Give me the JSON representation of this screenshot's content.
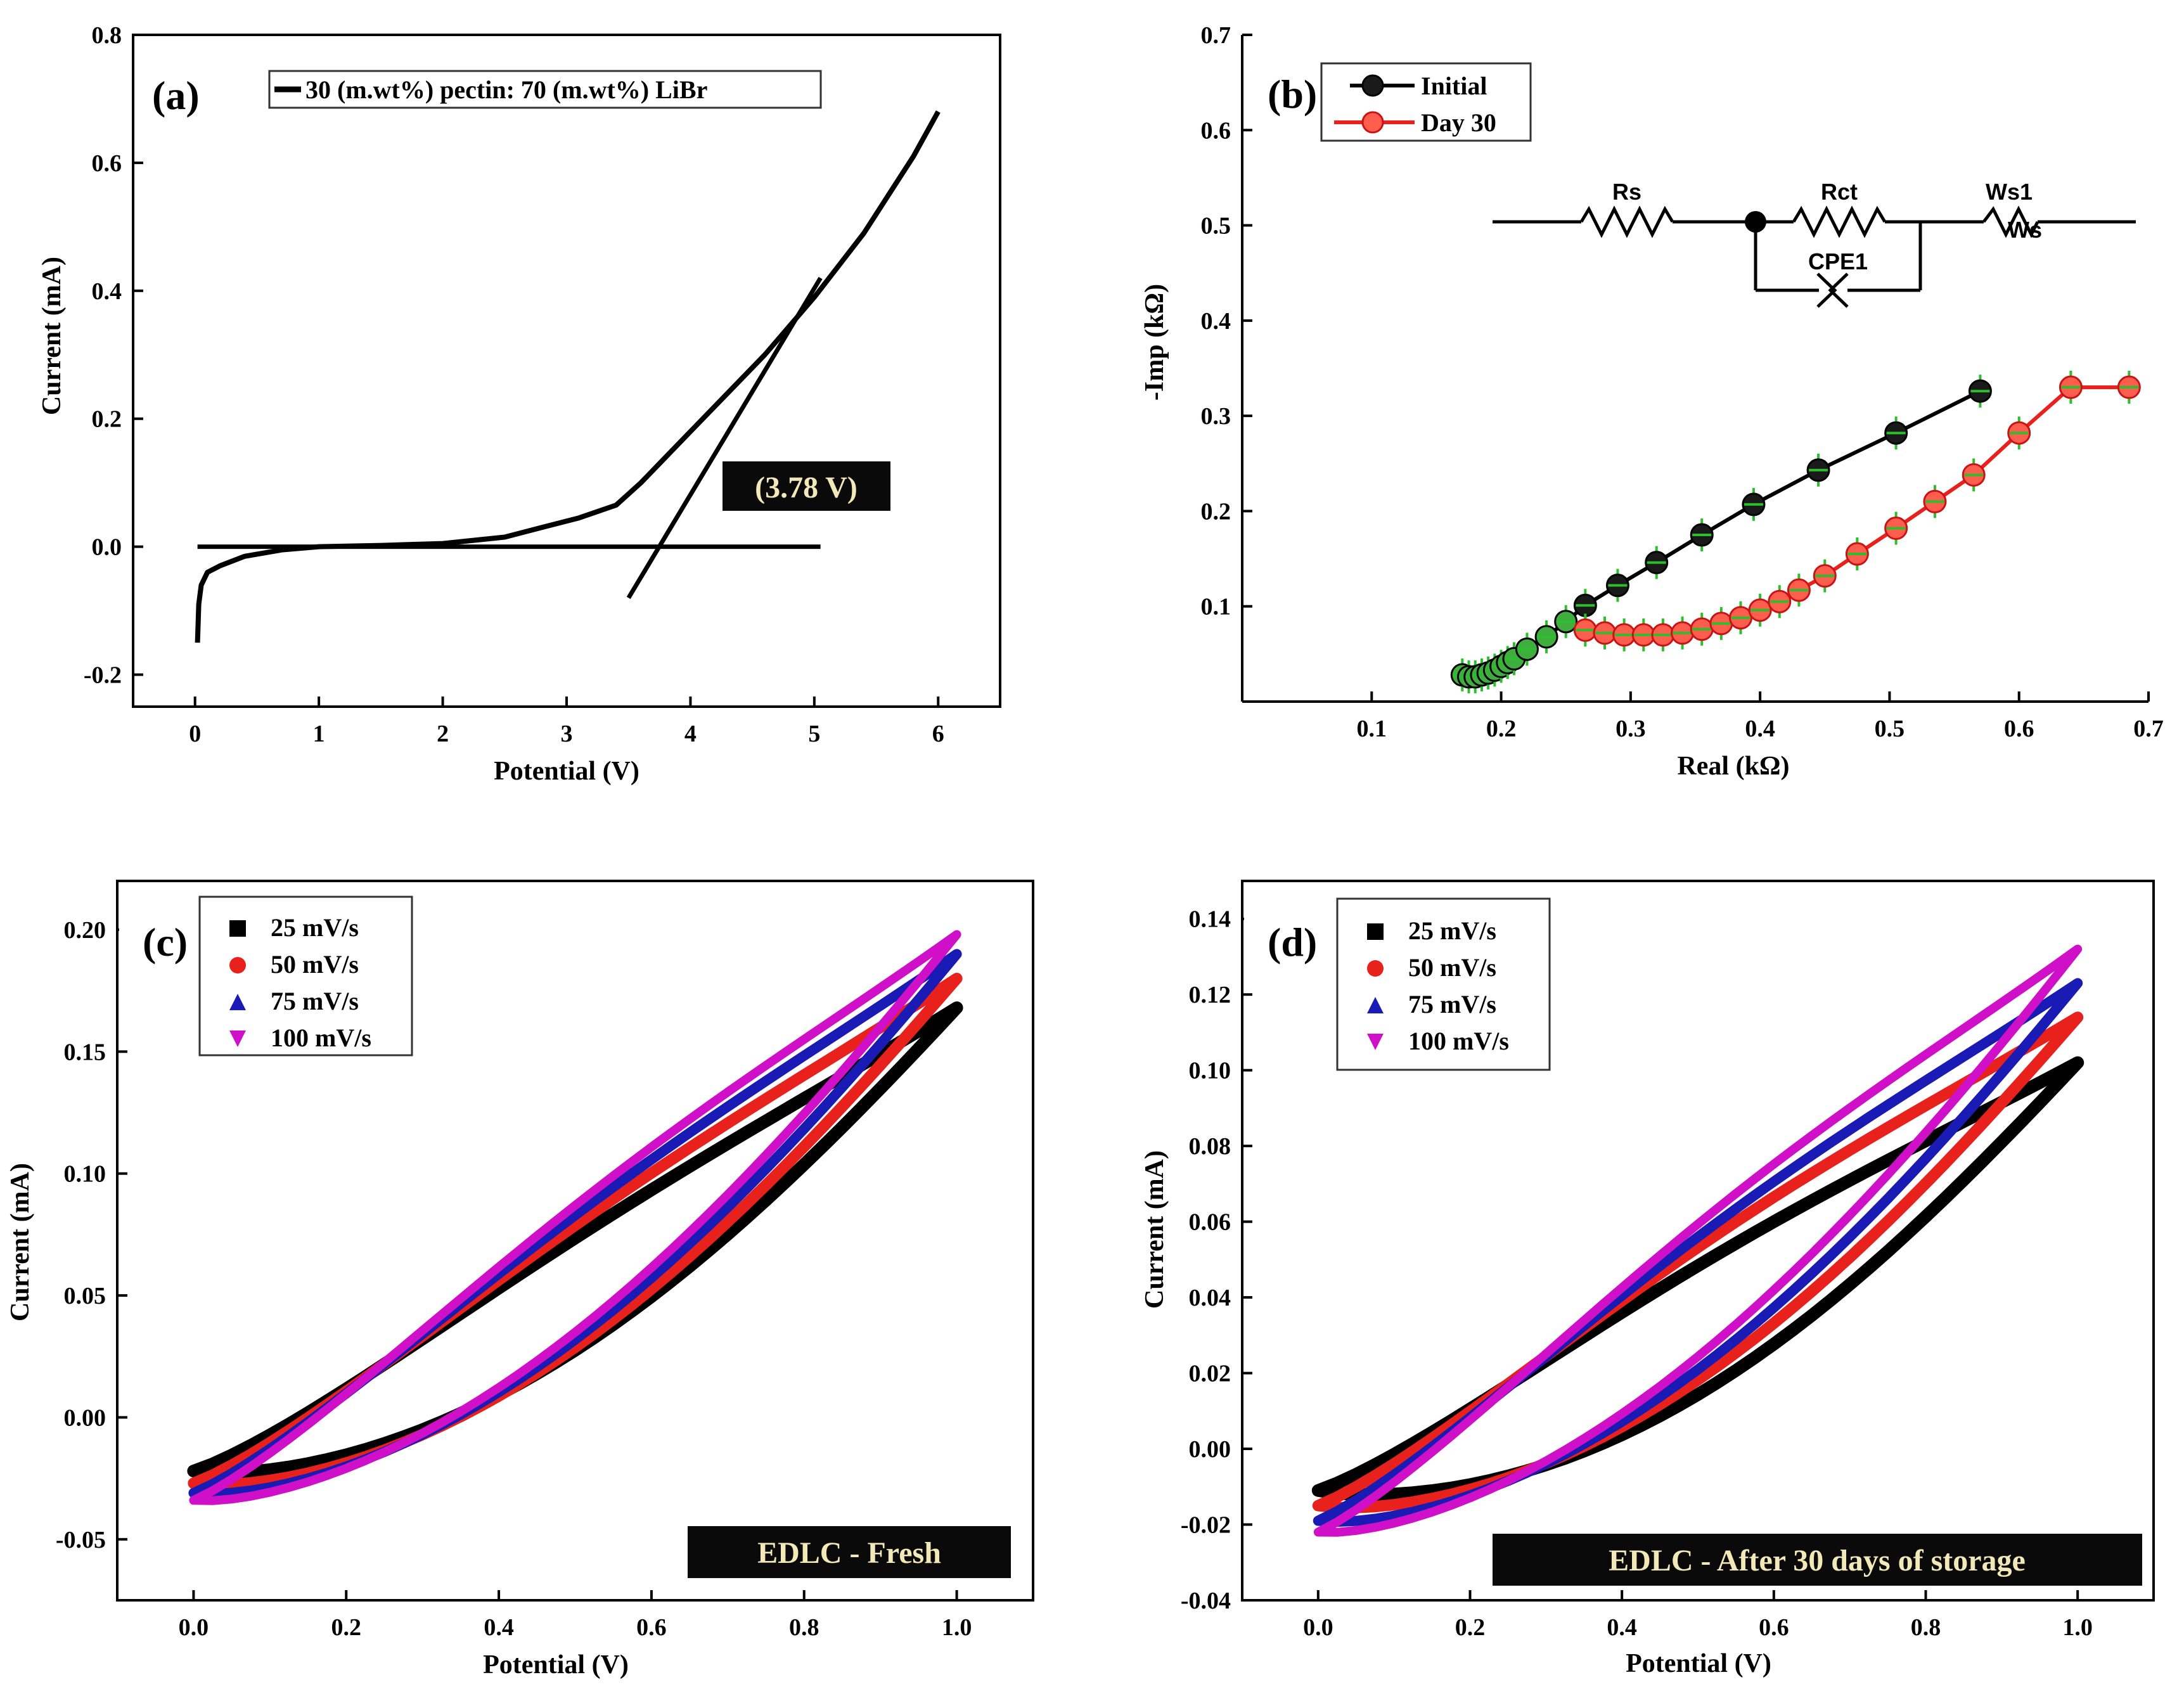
{
  "chart_data": [
    {
      "id": "a",
      "type": "line",
      "panel_label": "(a)",
      "xlabel": "Potential (V)",
      "ylabel": "Current (mA)",
      "xlim": [
        -0.5,
        6.5
      ],
      "ylim": [
        -0.25,
        0.8
      ],
      "xticks": [
        0,
        1,
        2,
        3,
        4,
        5,
        6
      ],
      "yticks": [
        -0.2,
        0.0,
        0.2,
        0.4,
        0.6,
        0.8
      ],
      "xtick_labels": [
        "0",
        "1",
        "2",
        "3",
        "4",
        "5",
        "6"
      ],
      "ytick_labels": [
        "-0.2",
        "0.0",
        "0.2",
        "0.4",
        "0.6",
        "0.8"
      ],
      "legend": [
        "30 (m.wt%) pectin: 70 (m.wt%) LiBr"
      ],
      "annotation": "(3.78 V)",
      "series": [
        {
          "name": "30 (m.wt%) pectin: 70 (m.wt%) LiBr",
          "x": [
            0.02,
            0.03,
            0.05,
            0.1,
            0.2,
            0.4,
            0.7,
            1.0,
            1.5,
            2.0,
            2.5,
            2.8,
            3.1,
            3.4,
            3.6,
            3.8,
            4.0,
            4.3,
            4.6,
            5.0,
            5.4,
            5.8,
            6.0
          ],
          "y": [
            -0.15,
            -0.09,
            -0.06,
            -0.04,
            -0.03,
            -0.015,
            -0.005,
            0.0,
            0.002,
            0.005,
            0.015,
            0.03,
            0.045,
            0.065,
            0.1,
            0.14,
            0.18,
            0.24,
            0.3,
            0.39,
            0.49,
            0.61,
            0.68
          ]
        }
      ],
      "baseline": {
        "x": [
          0.02,
          5.05
        ],
        "y": [
          0.0,
          0.0
        ]
      },
      "tangent": {
        "x": [
          3.5,
          5.05
        ],
        "y": [
          -0.08,
          0.42
        ]
      }
    },
    {
      "id": "b",
      "type": "scatter",
      "panel_label": "(b)",
      "xlabel": "Real (kΩ)",
      "ylabel": "-Imp (kΩ)",
      "xlim": [
        0.0,
        0.7
      ],
      "ylim": [
        0.0,
        0.7
      ],
      "xticks": [
        0.1,
        0.2,
        0.3,
        0.4,
        0.5,
        0.6,
        0.7
      ],
      "yticks": [
        0.1,
        0.2,
        0.3,
        0.4,
        0.5,
        0.6,
        0.7
      ],
      "xtick_labels": [
        "0.1",
        "0.2",
        "0.3",
        "0.4",
        "0.5",
        "0.6",
        "0.7"
      ],
      "ytick_labels": [
        "0.1",
        "0.2",
        "0.3",
        "0.4",
        "0.5",
        "0.6",
        "0.7"
      ],
      "legend": [
        "Initial",
        "Day 30"
      ],
      "circuit_labels": {
        "rs": "Rs",
        "rct": "Rct",
        "ws": "Ws1",
        "ws_sub": "Ws",
        "cpe": "CPE1"
      },
      "series": [
        {
          "name": "Initial",
          "color": "#000000",
          "x": [
            0.17,
            0.175,
            0.18,
            0.185,
            0.19,
            0.195,
            0.2,
            0.205,
            0.21,
            0.22,
            0.235,
            0.25,
            0.265,
            0.29,
            0.32,
            0.355,
            0.395,
            0.445,
            0.505,
            0.57
          ],
          "y": [
            0.028,
            0.026,
            0.026,
            0.028,
            0.03,
            0.033,
            0.037,
            0.041,
            0.045,
            0.055,
            0.068,
            0.084,
            0.101,
            0.122,
            0.146,
            0.175,
            0.207,
            0.243,
            0.282,
            0.326
          ]
        },
        {
          "name": "Day 30",
          "color": "#e8211c",
          "x": [
            0.265,
            0.28,
            0.295,
            0.31,
            0.325,
            0.34,
            0.355,
            0.37,
            0.385,
            0.4,
            0.415,
            0.43,
            0.45,
            0.475,
            0.505,
            0.535,
            0.565,
            0.6,
            0.64,
            0.685
          ],
          "y": [
            0.075,
            0.072,
            0.07,
            0.07,
            0.07,
            0.072,
            0.076,
            0.082,
            0.088,
            0.096,
            0.105,
            0.117,
            0.132,
            0.155,
            0.182,
            0.21,
            0.238,
            0.282,
            0.33,
            0.33
          ]
        }
      ]
    },
    {
      "id": "c",
      "type": "line",
      "panel_label": "(c)",
      "xlabel": "Potential (V)",
      "ylabel": "Current (mA)",
      "xlim": [
        -0.1,
        1.1
      ],
      "ylim": [
        -0.075,
        0.22
      ],
      "xticks": [
        0.0,
        0.2,
        0.4,
        0.6,
        0.8,
        1.0
      ],
      "yticks": [
        -0.05,
        0.0,
        0.05,
        0.1,
        0.15,
        0.2
      ],
      "xtick_labels": [
        "0.0",
        "0.2",
        "0.4",
        "0.6",
        "0.8",
        "1.0"
      ],
      "ytick_labels": [
        "-0.05",
        "0.00",
        "0.05",
        "0.10",
        "0.15",
        "0.20"
      ],
      "legend": [
        "25 mV/s",
        "50 mV/s",
        "75 mV/s",
        "100 mV/s"
      ],
      "annotation": "EDLC - Fresh",
      "series": [
        {
          "name": "25 mV/s",
          "color": "#000000",
          "marker": "square",
          "start": -0.022,
          "end": 0.168,
          "upper": 0.026,
          "lower": -0.02
        },
        {
          "name": "50 mV/s",
          "color": "#e8211c",
          "marker": "circle",
          "start": -0.027,
          "end": 0.18,
          "upper": 0.03,
          "lower": -0.02
        },
        {
          "name": "75 mV/s",
          "color": "#1a1ab4",
          "marker": "triangle-up",
          "start": -0.031,
          "end": 0.19,
          "upper": 0.033,
          "lower": -0.018
        },
        {
          "name": "100 mV/s",
          "color": "#d010c8",
          "marker": "triangle-down",
          "start": -0.034,
          "end": 0.198,
          "upper": 0.036,
          "lower": -0.016
        }
      ]
    },
    {
      "id": "d",
      "type": "line",
      "panel_label": "(d)",
      "xlabel": "Potential (V)",
      "ylabel": "Current (mA)",
      "xlim": [
        -0.1,
        1.1
      ],
      "ylim": [
        -0.04,
        0.15
      ],
      "xticks": [
        0.0,
        0.2,
        0.4,
        0.6,
        0.8,
        1.0
      ],
      "yticks": [
        -0.04,
        -0.02,
        0.0,
        0.02,
        0.04,
        0.06,
        0.08,
        0.1,
        0.12,
        0.14
      ],
      "xtick_labels": [
        "0.0",
        "0.2",
        "0.4",
        "0.6",
        "0.8",
        "1.0"
      ],
      "ytick_labels": [
        "-0.04",
        "-0.02",
        "0.00",
        "0.02",
        "0.04",
        "0.06",
        "0.08",
        "0.10",
        "0.12",
        "0.14"
      ],
      "legend": [
        "25 mV/s",
        "50 mV/s",
        "75 mV/s",
        "100 mV/s"
      ],
      "annotation": "EDLC - After 30 days of storage",
      "series": [
        {
          "name": "25 mV/s",
          "color": "#000000",
          "marker": "square",
          "start": -0.011,
          "end": 0.102,
          "upper": 0.018,
          "lower": -0.016
        },
        {
          "name": "50 mV/s",
          "color": "#e8211c",
          "marker": "circle",
          "start": -0.015,
          "end": 0.114,
          "upper": 0.021,
          "lower": -0.014
        },
        {
          "name": "75 mV/s",
          "color": "#1a1ab4",
          "marker": "triangle-up",
          "start": -0.019,
          "end": 0.123,
          "upper": 0.023,
          "lower": -0.012
        },
        {
          "name": "100 mV/s",
          "color": "#d010c8",
          "marker": "triangle-down",
          "start": -0.022,
          "end": 0.132,
          "upper": 0.025,
          "lower": -0.01
        }
      ]
    }
  ]
}
